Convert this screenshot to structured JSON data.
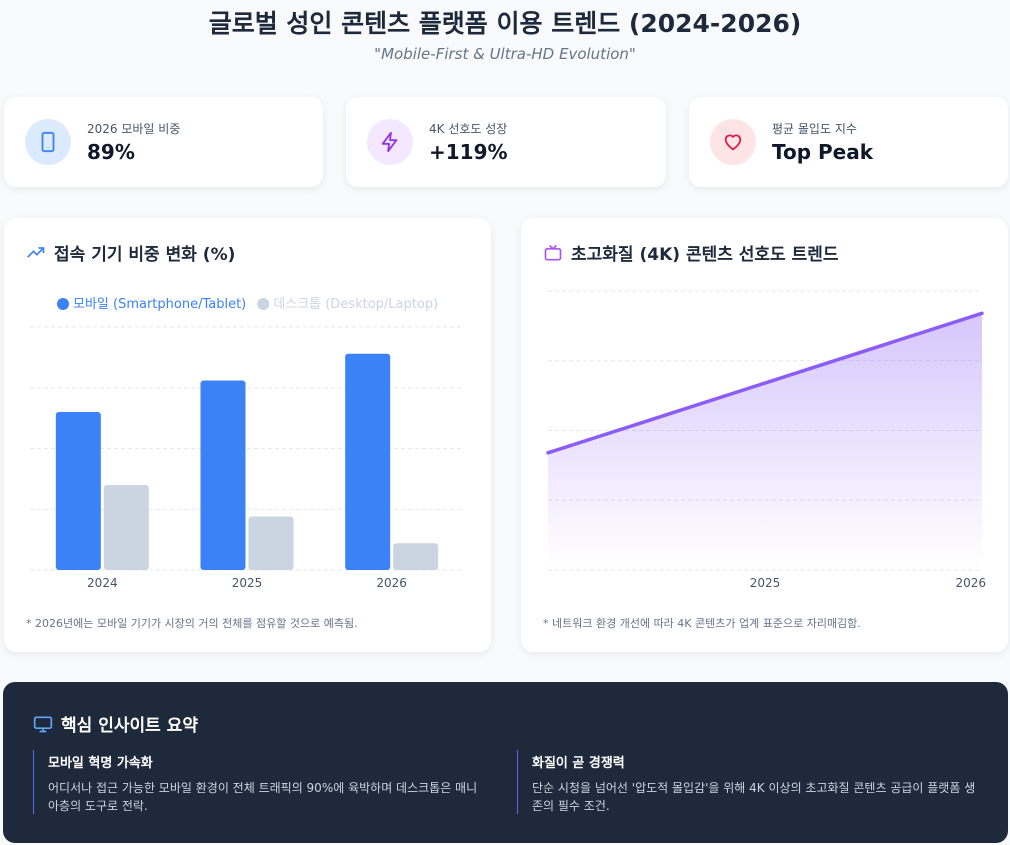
{
  "header": {
    "title": "글로벌 성인 콘텐츠 플랫폼 이용 트렌드 (2024-2026)",
    "subtitle": "\"Mobile-First & Ultra-HD Evolution\""
  },
  "kpis": [
    {
      "label": "2026 모바일 비중",
      "value": "89%"
    },
    {
      "label": "4K 선호도 성장",
      "value": "+119%"
    },
    {
      "label": "평균 몰입도 지수",
      "value": "Top Peak"
    }
  ],
  "chart_data": [
    {
      "type": "bar",
      "title": "접속 기기 비중 변화 (%)",
      "categories": [
        "2024",
        "2025",
        "2026"
      ],
      "series": [
        {
          "name": "모바일 (Smartphone/Tablet)",
          "color": "#3b82f6",
          "values": [
            65,
            78,
            89
          ]
        },
        {
          "name": "데스크톱 (Desktop/Laptop)",
          "color": "#cbd5e1",
          "values": [
            35,
            22,
            11
          ]
        }
      ],
      "ylim": [
        0,
        100
      ],
      "yticks": [
        0,
        25,
        50,
        75,
        100
      ],
      "grid": true,
      "note": "* 2026년에는 모바일 기기가 시장의 거의 전체를 점유할 것으로 예측됨."
    },
    {
      "type": "area",
      "title": "초고화질 (4K) 콘텐츠 선호도 트렌드",
      "categories": [
        null,
        "2025",
        "2026"
      ],
      "values": [
        42,
        67,
        92
      ],
      "color": "#8b5cf6",
      "ylim": [
        0,
        100
      ],
      "yticks": [
        0,
        25,
        50,
        75,
        100
      ],
      "grid": true,
      "note": "* 네트워크 환경 개선에 따라 4K 콘텐츠가 업계 표준으로 자리매김함."
    }
  ],
  "insights": {
    "title": "핵심 인사이트 요약",
    "items": [
      {
        "title": "모바일 혁명 가속화",
        "text": "어디서나 접근 가능한 모바일 환경이 전체 트래픽의 90%에 육박하며 데스크톱은 매니아층의 도구로 전락."
      },
      {
        "title": "화질이 곧 경쟁력",
        "text": "단순 시청을 넘어선 '압도적 몰입감'을 위해 4K 이상의 초고화질 콘텐츠 공급이 플랫폼 생존의 필수 조건."
      }
    ]
  }
}
